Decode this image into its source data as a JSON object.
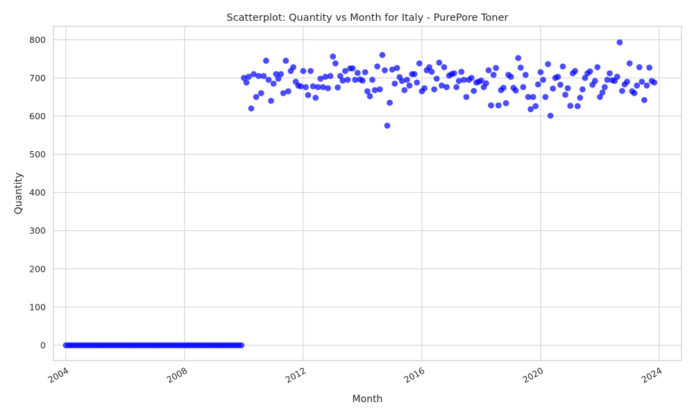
{
  "chart_data": {
    "type": "scatter",
    "title": "Scatterplot: Quantity vs Month for Italy - PurePore Toner",
    "xlabel": "Month",
    "ylabel": "Quantity",
    "xlim": [
      "2003-08-01",
      "2024-10-01"
    ],
    "ylim": [
      -40,
      835
    ],
    "x_ticks": [
      "2004",
      "2008",
      "2012",
      "2016",
      "2020",
      "2024"
    ],
    "y_ticks": [
      "0",
      "100",
      "200",
      "300",
      "400",
      "500",
      "600",
      "700",
      "800"
    ],
    "grid": true,
    "marker_color": "#0000ff",
    "marker_alpha": 0.7,
    "series": [
      {
        "start_month": "2004-01",
        "values": [
          0,
          0,
          0,
          0,
          0,
          0,
          0,
          0,
          0,
          0,
          0,
          0,
          0,
          0,
          0,
          0,
          0,
          0,
          0,
          0,
          0,
          0,
          0,
          0,
          0,
          0,
          0,
          0,
          0,
          0,
          0,
          0,
          0,
          0,
          0,
          0,
          0,
          0,
          0,
          0,
          0,
          0,
          0,
          0,
          0,
          0,
          0,
          0,
          0,
          0,
          0,
          0,
          0,
          0,
          0,
          0,
          0,
          0,
          0,
          0,
          0,
          0,
          0,
          0,
          0,
          0,
          0,
          0,
          0,
          0,
          0,
          0,
          700,
          688,
          703,
          620,
          710,
          650,
          705,
          660,
          705,
          745,
          695,
          640,
          685,
          710,
          698,
          710,
          660,
          745,
          665,
          718,
          728,
          690,
          680,
          678,
          718,
          676,
          655,
          718,
          678,
          648,
          676,
          698,
          676,
          703,
          673,
          705,
          756,
          738,
          675,
          705,
          693,
          718,
          695,
          725,
          725,
          695,
          713,
          696,
          693,
          715,
          665,
          652,
          695,
          668,
          730,
          670,
          760,
          720,
          575,
          635,
          722,
          685,
          726,
          702,
          692,
          668,
          695,
          680,
          710,
          710,
          688,
          738,
          665,
          673,
          720,
          728,
          716,
          670,
          698,
          740,
          680,
          728,
          676,
          706,
          710,
          712,
          676,
          692,
          716,
          695,
          650,
          695,
          700,
          666,
          688,
          690,
          693,
          676,
          686,
          720,
          628,
          708,
          726,
          628,
          668,
          674,
          634,
          708,
          703,
          674,
          667,
          752,
          727,
          676,
          708,
          650,
          618,
          650,
          626,
          683,
          715,
          695,
          650,
          736,
          601,
          672,
          700,
          703,
          682,
          730,
          656,
          673,
          627,
          712,
          718,
          626,
          648,
          670,
          700,
          712,
          717,
          682,
          692,
          728,
          650,
          662,
          676,
          695,
          712,
          694,
          692,
          703,
          793,
          666,
          683,
          690,
          738,
          665,
          660,
          680,
          728,
          690,
          642,
          680,
          727,
          692,
          688
        ]
      }
    ]
  }
}
